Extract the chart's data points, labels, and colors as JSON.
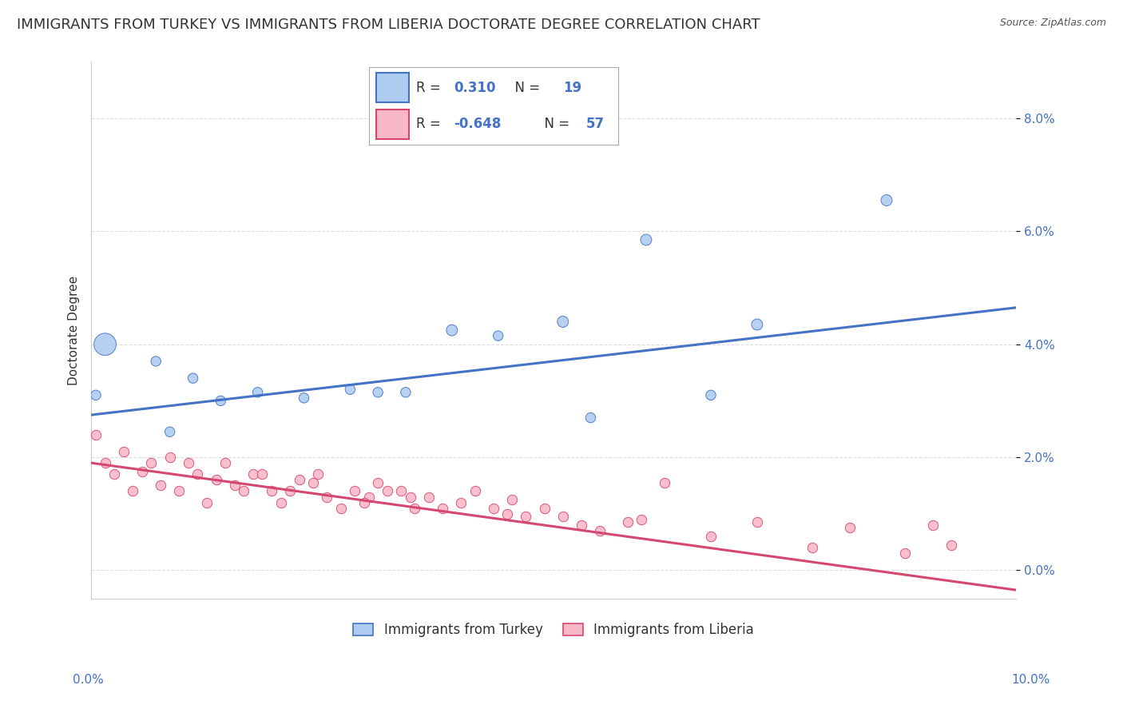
{
  "title": "IMMIGRANTS FROM TURKEY VS IMMIGRANTS FROM LIBERIA DOCTORATE DEGREE CORRELATION CHART",
  "source": "Source: ZipAtlas.com",
  "ylabel": "Doctorate Degree",
  "xlim": [
    0.0,
    10.0
  ],
  "ylim": [
    -0.5,
    9.0
  ],
  "yticks": [
    0.0,
    2.0,
    4.0,
    6.0,
    8.0
  ],
  "ytick_labels": [
    "0.0%",
    "2.0%",
    "4.0%",
    "6.0%",
    "8.0%"
  ],
  "turkey_color": "#aeccf0",
  "turkey_line_color": "#4472c4",
  "liberia_color": "#f9b8c8",
  "liberia_line_color": "#d44870",
  "turkey_R": "0.310",
  "turkey_N": "19",
  "liberia_R": "-0.648",
  "liberia_N": "57",
  "turkey_scatter_x": [
    0.15,
    0.7,
    1.1,
    1.4,
    1.8,
    2.3,
    2.8,
    3.4,
    3.9,
    4.4,
    5.1,
    5.4,
    6.0,
    7.2,
    8.6,
    0.05,
    0.85,
    3.1,
    6.7
  ],
  "turkey_scatter_y": [
    4.0,
    3.7,
    3.4,
    3.0,
    3.15,
    3.05,
    3.2,
    3.15,
    4.25,
    4.15,
    4.4,
    2.7,
    5.85,
    4.35,
    6.55,
    3.1,
    2.45,
    3.15,
    3.1
  ],
  "turkey_scatter_size": [
    400,
    80,
    80,
    80,
    80,
    80,
    80,
    80,
    100,
    80,
    100,
    80,
    100,
    100,
    100,
    80,
    80,
    80,
    80
  ],
  "liberia_scatter_x": [
    0.05,
    0.15,
    0.25,
    0.35,
    0.45,
    0.55,
    0.65,
    0.75,
    0.85,
    0.95,
    1.05,
    1.15,
    1.25,
    1.35,
    1.45,
    1.55,
    1.65,
    1.75,
    1.85,
    1.95,
    2.05,
    2.15,
    2.25,
    2.4,
    2.55,
    2.7,
    2.85,
    3.0,
    3.1,
    3.2,
    3.35,
    3.5,
    3.65,
    3.8,
    4.0,
    4.15,
    4.35,
    4.5,
    4.7,
    4.9,
    5.1,
    5.3,
    5.5,
    5.8,
    6.2,
    6.7,
    7.2,
    7.8,
    8.2,
    8.8,
    9.1,
    9.3,
    2.45,
    2.95,
    3.45,
    4.55,
    5.95
  ],
  "liberia_scatter_y": [
    2.4,
    1.9,
    1.7,
    2.1,
    1.4,
    1.75,
    1.9,
    1.5,
    2.0,
    1.4,
    1.9,
    1.7,
    1.2,
    1.6,
    1.9,
    1.5,
    1.4,
    1.7,
    1.7,
    1.4,
    1.2,
    1.4,
    1.6,
    1.55,
    1.3,
    1.1,
    1.4,
    1.3,
    1.55,
    1.4,
    1.4,
    1.1,
    1.3,
    1.1,
    1.2,
    1.4,
    1.1,
    1.0,
    0.95,
    1.1,
    0.95,
    0.8,
    0.7,
    0.85,
    1.55,
    0.6,
    0.85,
    0.4,
    0.75,
    0.3,
    0.8,
    0.45,
    1.7,
    1.2,
    1.3,
    1.25,
    0.9
  ],
  "turkey_trend_x": [
    0.0,
    10.0
  ],
  "turkey_trend_y": [
    2.75,
    4.65
  ],
  "liberia_trend_x": [
    0.0,
    10.0
  ],
  "liberia_trend_y": [
    1.9,
    -0.35
  ],
  "background_color": "#ffffff",
  "grid_color": "#dddddd",
  "title_fontsize": 13,
  "axis_label_fontsize": 11,
  "tick_fontsize": 11,
  "legend_fontsize": 12
}
